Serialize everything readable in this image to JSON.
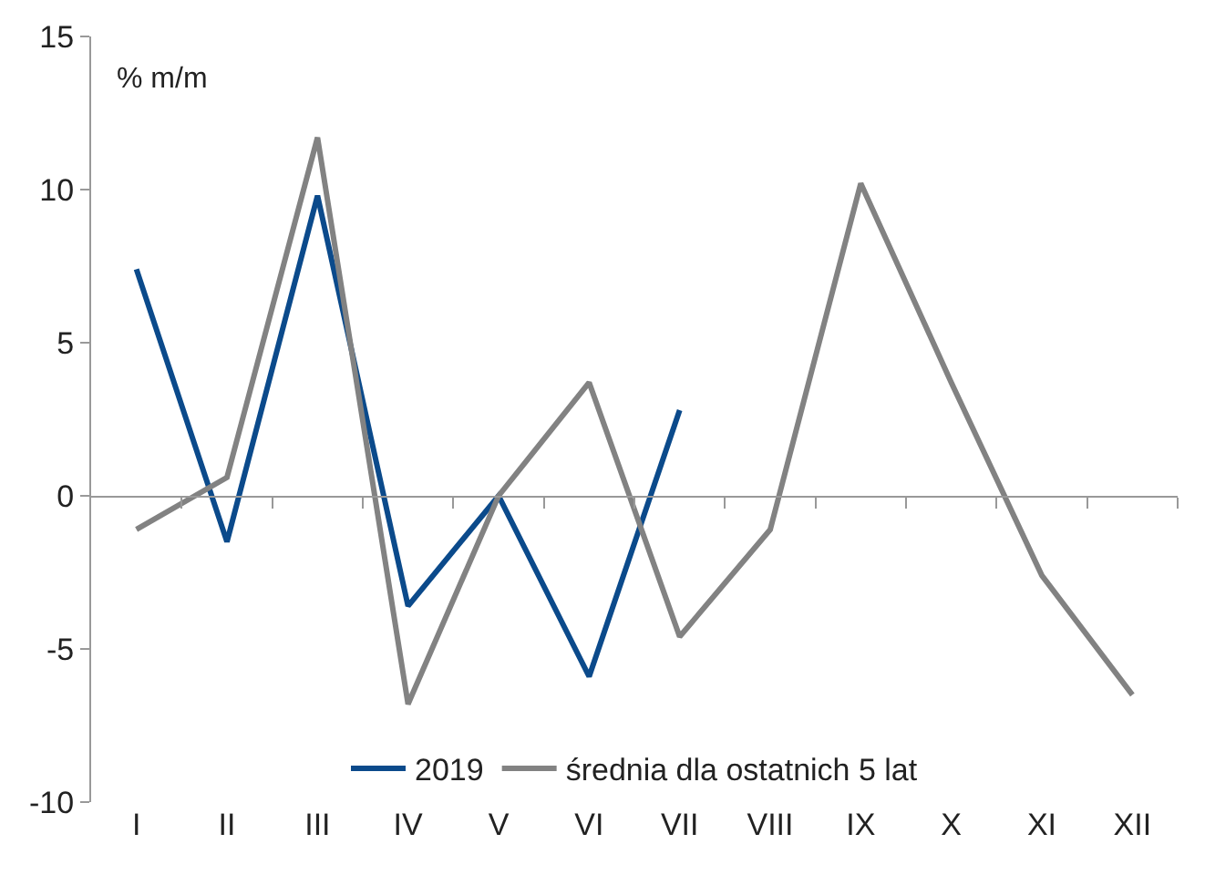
{
  "chart_data": {
    "type": "line",
    "ylabel": "% m/m",
    "categories": [
      "I",
      "II",
      "III",
      "IV",
      "V",
      "VI",
      "VII",
      "VIII",
      "IX",
      "X",
      "XI",
      "XII"
    ],
    "series": [
      {
        "name": "2019",
        "color": "#0b4a8b",
        "values": [
          7.4,
          -1.5,
          9.8,
          -3.6,
          0,
          -5.9,
          2.8,
          null,
          null,
          null,
          null,
          null
        ]
      },
      {
        "name": "średnia dla ostatnich 5 lat",
        "color": "#828282",
        "values": [
          -1.1,
          0.6,
          11.7,
          -6.8,
          0,
          3.7,
          -4.6,
          -1.1,
          10.2,
          3.7,
          -2.6,
          -6.5
        ]
      }
    ],
    "ylim": [
      -10,
      15
    ],
    "yticks": [
      -10,
      -5,
      0,
      5,
      10,
      15
    ],
    "legend": "bottom",
    "marker": "none",
    "line_style": "solid"
  }
}
